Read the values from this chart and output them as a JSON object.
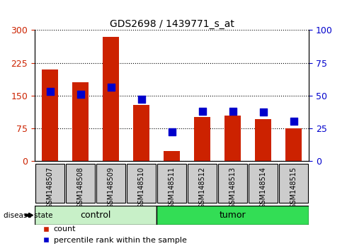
{
  "title": "GDS2698 / 1439771_s_at",
  "samples": [
    "GSM148507",
    "GSM148508",
    "GSM148509",
    "GSM148510",
    "GSM148511",
    "GSM148512",
    "GSM148513",
    "GSM148514",
    "GSM148515"
  ],
  "counts": [
    210,
    180,
    285,
    128,
    22,
    100,
    103,
    95,
    75
  ],
  "percentiles": [
    53,
    51,
    56,
    47,
    22,
    38,
    38,
    37,
    30
  ],
  "groups": [
    "control",
    "control",
    "control",
    "control",
    "tumor",
    "tumor",
    "tumor",
    "tumor",
    "tumor"
  ],
  "control_count": 4,
  "tumor_count": 5,
  "left_ylim": [
    0,
    300
  ],
  "right_ylim": [
    0,
    100
  ],
  "left_yticks": [
    0,
    75,
    150,
    225,
    300
  ],
  "right_yticks": [
    0,
    25,
    50,
    75,
    100
  ],
  "bar_color": "#cc2200",
  "dot_color": "#0000cc",
  "control_color": "#c8f0c8",
  "tumor_color": "#33dd55",
  "tick_bg_color": "#cccccc",
  "bar_width": 0.55,
  "dot_size": 55,
  "title_fontsize": 10,
  "tick_fontsize": 7,
  "legend_fontsize": 8
}
